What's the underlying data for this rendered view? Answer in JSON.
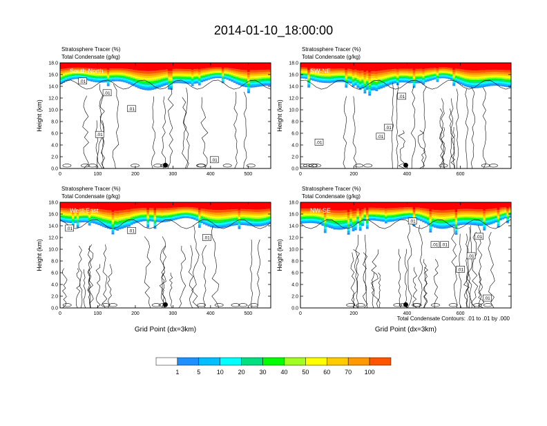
{
  "page": {
    "title": "2014-01-10_18:00:00",
    "footnote": "Total Condensate Contours: .01 to .01 by .000"
  },
  "colors": {
    "levels": [
      "#ffffff",
      "#1e90ff",
      "#00bfff",
      "#00ffff",
      "#00e07f",
      "#00ff00",
      "#a0ff20",
      "#ffff00",
      "#ffcc00",
      "#ff9900",
      "#ff5500",
      "#ff0000"
    ],
    "label_values": [
      "1",
      "5",
      "10",
      "20",
      "30",
      "40",
      "50",
      "60",
      "70",
      "100"
    ]
  },
  "chart_data": [
    {
      "type": "heatmap",
      "panel_label": "South-North",
      "title_lines": [
        "Stratosphere Tracer   (%)",
        "Total Condensate   (g/kg)"
      ],
      "ylabel": "Height (km)",
      "xlabel": "",
      "ylim": [
        0,
        18
      ],
      "xlim": [
        0,
        560
      ],
      "x_ticks": [
        "0",
        "100",
        "200",
        "300",
        "400",
        "500"
      ],
      "x_tick_values": [
        0,
        100,
        200,
        300,
        400,
        500
      ],
      "y_ticks": [
        "0.0",
        "2.0",
        "4.0",
        "6.0",
        "8.0",
        "10.0",
        "12.0",
        "14.0",
        "16.0",
        "18.0"
      ],
      "marker_x": 280,
      "contour_labels": [
        {
          "text": ".01",
          "x": 60,
          "y": 14.9
        },
        {
          "text": ".01",
          "x": 125,
          "y": 12.9
        },
        {
          "text": ".01",
          "x": 190,
          "y": 10.2
        },
        {
          "text": ".01",
          "x": 105,
          "y": 5.8
        },
        {
          "text": ".01",
          "x": 410,
          "y": 1.5
        }
      ]
    },
    {
      "type": "heatmap",
      "panel_label": "SW-NE",
      "title_lines": [
        "Stratosphere Tracer   (%)",
        "Total Condensate   (g/kg)"
      ],
      "ylabel": "Height (km)",
      "xlabel": "",
      "ylim": [
        0,
        18
      ],
      "xlim": [
        0,
        790
      ],
      "x_ticks": [
        "0",
        "200",
        "400",
        "600"
      ],
      "x_tick_values": [
        0,
        200,
        400,
        600
      ],
      "y_ticks": [
        "0.0",
        "2.0",
        "4.0",
        "6.0",
        "8.0",
        "10.0",
        "12.0",
        "14.0",
        "16.0",
        "18.0"
      ],
      "marker_x": 395,
      "contour_labels": [
        {
          "text": ".01",
          "x": 330,
          "y": 7.0
        },
        {
          "text": ".01",
          "x": 70,
          "y": 4.5
        },
        {
          "text": ".01",
          "x": 300,
          "y": 5.5
        },
        {
          "text": ".01",
          "x": 380,
          "y": 12.3
        }
      ]
    },
    {
      "type": "heatmap",
      "panel_label": "West-East",
      "title_lines": [
        "Stratosphere Tracer   (%)",
        "Total Condensate   (g/kg)"
      ],
      "ylabel": "Height (km)",
      "xlabel": "Grid Point (dx=3km)",
      "ylim": [
        0,
        18
      ],
      "xlim": [
        0,
        560
      ],
      "x_ticks": [
        "0",
        "100",
        "200",
        "300",
        "400",
        "500"
      ],
      "x_tick_values": [
        0,
        100,
        200,
        300,
        400,
        500
      ],
      "y_ticks": [
        "0.0",
        "2.0",
        "4.0",
        "6.0",
        "8.0",
        "10.0",
        "12.0",
        "14.0",
        "16.0",
        "18.0"
      ],
      "marker_x": 280,
      "contour_labels": [
        {
          "text": ".01",
          "x": 25,
          "y": 13.6
        },
        {
          "text": ".01",
          "x": 190,
          "y": 13.2
        },
        {
          "text": ".01",
          "x": 390,
          "y": 12.0
        }
      ]
    },
    {
      "type": "heatmap",
      "panel_label": "NW-SE",
      "title_lines": [
        "Stratosphere Tracer   (%)",
        "Total Condensate   (g/kg)"
      ],
      "ylabel": "Height (km)",
      "xlabel": "Grid Point (dx=3km)",
      "ylim": [
        0,
        18
      ],
      "xlim": [
        0,
        790
      ],
      "x_ticks": [
        "0",
        "200",
        "400",
        "600"
      ],
      "x_tick_values": [
        0,
        200,
        400,
        600
      ],
      "y_ticks": [
        "0.0",
        "2.0",
        "4.0",
        "6.0",
        "8.0",
        "10.0",
        "12.0",
        "14.0",
        "16.0",
        "18.0"
      ],
      "marker_x": 395,
      "contour_labels": [
        {
          "text": ".01",
          "x": 420,
          "y": 14.8
        },
        {
          "text": ".01",
          "x": 540,
          "y": 10.8
        },
        {
          "text": ".01",
          "x": 640,
          "y": 8.9
        },
        {
          "text": ".01",
          "x": 670,
          "y": 12.2
        },
        {
          "text": ".01",
          "x": 505,
          "y": 10.8
        },
        {
          "text": ".01",
          "x": 600,
          "y": 6.6
        },
        {
          "text": ".01",
          "x": 700,
          "y": 1.7
        }
      ]
    }
  ]
}
